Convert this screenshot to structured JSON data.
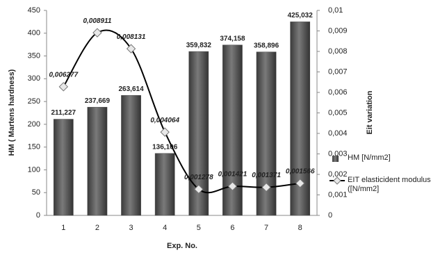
{
  "chart_data": {
    "type": "bar-line",
    "xlabel": "Exp. No.",
    "ylabel": "HM ( Martens hardness)",
    "y2label": "Eit variation",
    "categories": [
      "1",
      "2",
      "3",
      "4",
      "5",
      "6",
      "7",
      "8"
    ],
    "series": [
      {
        "name": "HM [N/mm2]",
        "type": "bar",
        "color": "#4d4d4d",
        "values": [
          211.227,
          237.669,
          263.614,
          136.106,
          359.832,
          374.158,
          358.896,
          425.032
        ],
        "value_labels": [
          "211,227",
          "237,669",
          "263,614",
          "136,106",
          "359,832",
          "374,158",
          "358,896",
          "425,032"
        ]
      },
      {
        "name": "EIT elasticident modulus ([N/mm2]",
        "type": "line",
        "axis": "y2",
        "color": "#000000",
        "values": [
          0.006277,
          0.008911,
          0.008131,
          0.004064,
          0.001278,
          0.001421,
          0.001371,
          0.001566
        ],
        "value_labels": [
          "0,006277",
          "0,008911",
          "0,008131",
          "0,004064",
          "0,001278",
          "0,001421",
          "0,001371",
          "0,001566"
        ]
      }
    ],
    "ylim": [
      0,
      450
    ],
    "yticks": [
      0,
      50,
      100,
      150,
      200,
      250,
      300,
      350,
      400,
      450
    ],
    "y2lim": [
      0,
      0.01
    ],
    "y2ticks": [
      0,
      {
        "value": 0.001,
        "label": "0,001"
      },
      {
        "value": 0.002,
        "label": "0,002"
      },
      {
        "value": 0.003,
        "label": "0,003"
      },
      {
        "value": 0.004,
        "label": "0,004"
      },
      {
        "value": 0.005,
        "label": "0,005"
      },
      {
        "value": 0.006,
        "label": "0,006"
      },
      {
        "value": 0.007,
        "label": "0,007"
      },
      {
        "value": 0.008,
        "label": "0,008"
      },
      {
        "value": 0.009,
        "label": "0,009"
      },
      {
        "value": 0.01,
        "label": "0,01"
      }
    ],
    "grid": false,
    "legend": "right"
  }
}
